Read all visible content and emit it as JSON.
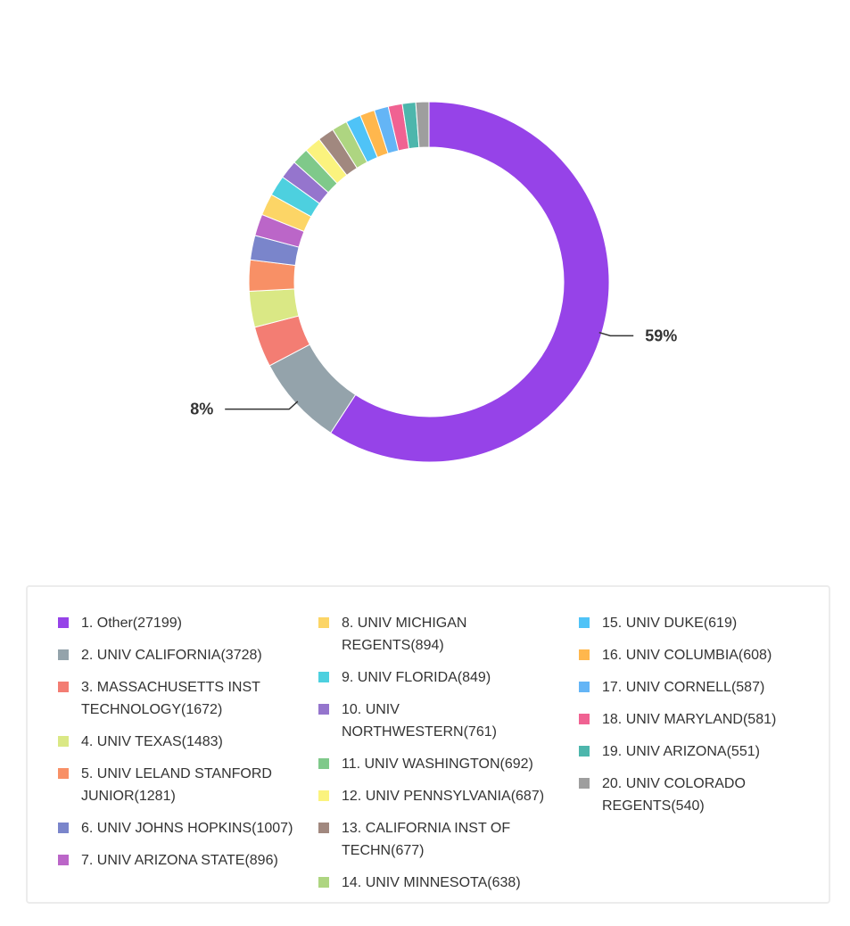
{
  "chart_data": {
    "type": "pie",
    "donut": true,
    "start_angle": "top",
    "direction": "clockwise",
    "legend_placement": "bottom",
    "slices": [
      {
        "label": "1. Other(27199)",
        "name": "Other",
        "value": 27199,
        "color": "#9643e8"
      },
      {
        "label": "2. UNIV CALIFORNIA(3728)",
        "name": "UNIV CALIFORNIA",
        "value": 3728,
        "color": "#94a3ab"
      },
      {
        "label": "3. MASSACHUSETTS INST TECHNOLOGY(1672)",
        "name": "MASSACHUSETTS INST TECHNOLOGY",
        "value": 1672,
        "color": "#f37d73"
      },
      {
        "label": "4. UNIV TEXAS(1483)",
        "name": "UNIV TEXAS",
        "value": 1483,
        "color": "#dae885"
      },
      {
        "label": "5. UNIV LELAND STANFORD JUNIOR(1281)",
        "name": "UNIV LELAND STANFORD JUNIOR",
        "value": 1281,
        "color": "#f89066"
      },
      {
        "label": "6. UNIV JOHNS HOPKINS(1007)",
        "name": "UNIV JOHNS HOPKINS",
        "value": 1007,
        "color": "#7a85cb"
      },
      {
        "label": "7. UNIV ARIZONA STATE(896)",
        "name": "UNIV ARIZONA STATE",
        "value": 896,
        "color": "#bb66c8"
      },
      {
        "label": "8. UNIV MICHIGAN REGENTS(894)",
        "name": "UNIV MICHIGAN REGENTS",
        "value": 894,
        "color": "#fcd566"
      },
      {
        "label": "9. UNIV FLORIDA(849)",
        "name": "UNIV FLORIDA",
        "value": 849,
        "color": "#4dd0df"
      },
      {
        "label": "10. UNIV NORTHWESTERN(761)",
        "name": "UNIV NORTHWESTERN",
        "value": 761,
        "color": "#9575cd"
      },
      {
        "label": "11. UNIV WASHINGTON(692)",
        "name": "UNIV WASHINGTON",
        "value": 692,
        "color": "#7fc98a"
      },
      {
        "label": "12. UNIV PENNSYLVANIA(687)",
        "name": "UNIV PENNSYLVANIA",
        "value": 687,
        "color": "#fbf37e"
      },
      {
        "label": "13. CALIFORNIA INST OF TECHN(677)",
        "name": "CALIFORNIA INST OF TECHN",
        "value": 677,
        "color": "#a1887f"
      },
      {
        "label": "14. UNIV MINNESOTA(638)",
        "name": "UNIV MINNESOTA",
        "value": 638,
        "color": "#aed581"
      },
      {
        "label": "15. UNIV DUKE(619)",
        "name": "UNIV DUKE",
        "value": 619,
        "color": "#4fc3f7"
      },
      {
        "label": "16. UNIV COLUMBIA(608)",
        "name": "UNIV COLUMBIA",
        "value": 608,
        "color": "#ffb74d"
      },
      {
        "label": "17. UNIV CORNELL(587)",
        "name": "UNIV CORNELL",
        "value": 587,
        "color": "#64b5f6"
      },
      {
        "label": "18. UNIV MARYLAND(581)",
        "name": "UNIV MARYLAND",
        "value": 581,
        "color": "#f06292"
      },
      {
        "label": "19. UNIV ARIZONA(551)",
        "name": "UNIV ARIZONA",
        "value": 551,
        "color": "#4db6ac"
      },
      {
        "label": "20. UNIV COLORADO REGENTS(540)",
        "name": "UNIV COLORADO REGENTS",
        "value": 540,
        "color": "#9e9e9e"
      }
    ],
    "callouts": [
      {
        "text": "59%",
        "slice_index": 0,
        "side": "right"
      },
      {
        "text": "8%",
        "slice_index": 1,
        "side": "left"
      }
    ]
  }
}
